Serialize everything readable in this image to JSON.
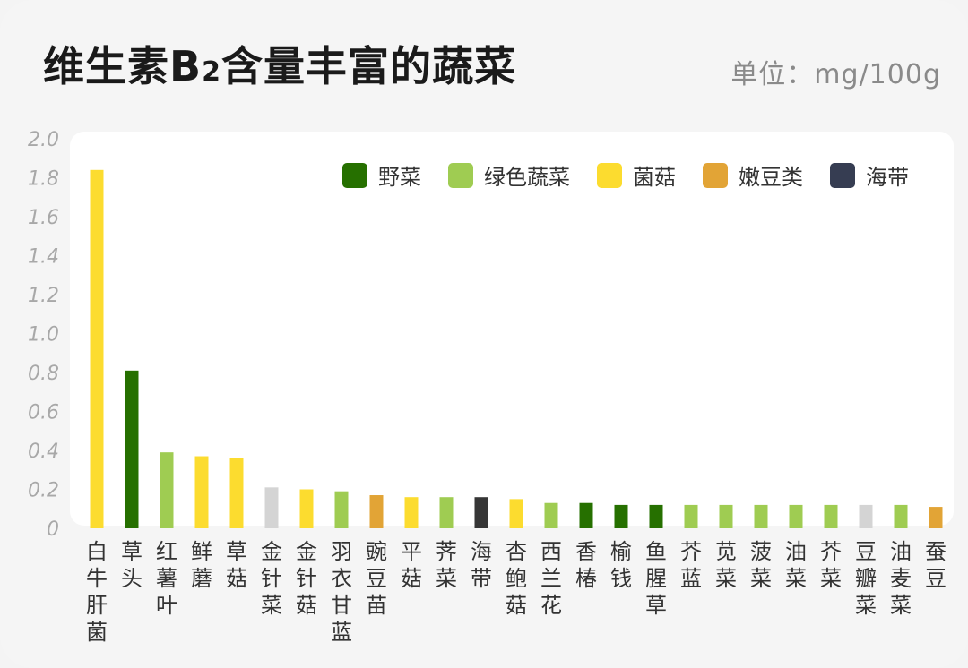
{
  "title": {
    "main": "维生素B",
    "subscript": "2",
    "rest": "含量丰富的蔬菜"
  },
  "unit": "单位：mg/100g",
  "legend": [
    {
      "name": "野菜",
      "color": "#267000"
    },
    {
      "name": "绿色蔬菜",
      "color": "#9fcc52"
    },
    {
      "name": "菌菇",
      "color": "#fcdc2f"
    },
    {
      "name": "嫩豆类",
      "color": "#e2a436"
    },
    {
      "name": "海带",
      "color": "#363d52"
    }
  ],
  "chart_data": {
    "type": "bar",
    "title": "维生素B2含量丰富的蔬菜",
    "ylabel": "单位：mg/100g",
    "ylim": [
      0,
      2.0
    ],
    "yticks": [
      "0",
      "0.2",
      "0.4",
      "0.6",
      "0.8",
      "1.0",
      "1.2",
      "1.4",
      "1.6",
      "1.8",
      "2.0"
    ],
    "grid": false,
    "legend_position": "top-right",
    "categories": [
      "白牛肝菌",
      "草头",
      "红薯叶",
      "鲜蘑",
      "草菇",
      "金针菜",
      "金针菇",
      "羽衣甘蓝",
      "豌豆苗",
      "平菇",
      "荠菜",
      "海带",
      "杏鲍菇",
      "西兰花",
      "香椿",
      "榆钱",
      "鱼腥草",
      "芥蓝",
      "苋菜",
      "菠菜",
      "油菜",
      "芥菜",
      "豆瓣菜",
      "油麦菜",
      "蚕豆"
    ],
    "values": [
      1.84,
      0.81,
      0.39,
      0.37,
      0.36,
      0.21,
      0.2,
      0.19,
      0.17,
      0.16,
      0.16,
      0.16,
      0.15,
      0.13,
      0.13,
      0.12,
      0.12,
      0.12,
      0.12,
      0.12,
      0.12,
      0.12,
      0.12,
      0.12,
      0.11
    ],
    "groups": [
      "菌菇",
      "野菜",
      "绿色蔬菜",
      "菌菇",
      "菌菇",
      "",
      "菌菇",
      "绿色蔬菜",
      "嫩豆类",
      "菌菇",
      "绿色蔬菜",
      "海带",
      "菌菇",
      "绿色蔬菜",
      "野菜",
      "野菜",
      "野菜",
      "绿色蔬菜",
      "绿色蔬菜",
      "绿色蔬菜",
      "绿色蔬菜",
      "绿色蔬菜",
      "",
      "绿色蔬菜",
      "嫩豆类"
    ],
    "colors": [
      "#fcdc2f",
      "#267000",
      "#9fcc52",
      "#fcdc2f",
      "#fcdc2f",
      "#d4d4d4",
      "#fcdc2f",
      "#9fcc52",
      "#e2a436",
      "#fcdc2f",
      "#9fcc52",
      "#363636",
      "#fcdc2f",
      "#9fcc52",
      "#267000",
      "#267000",
      "#267000",
      "#9fcc52",
      "#9fcc52",
      "#9fcc52",
      "#9fcc52",
      "#9fcc52",
      "#d4d4d4",
      "#9fcc52",
      "#e2a436"
    ]
  }
}
